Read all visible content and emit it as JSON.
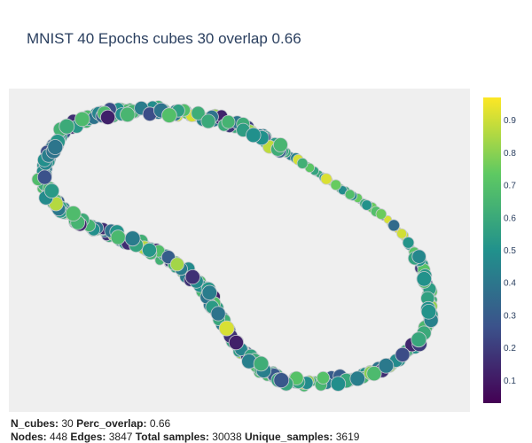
{
  "title": "MNIST 40 Epochs cubes 30 overlap 0.66",
  "chart_data": {
    "type": "scatter",
    "subtype": "mapper-graph",
    "title": "MNIST 40 Epochs cubes 30 overlap 0.66",
    "grid": false,
    "colorscale": "Viridis",
    "colorscale_stops": [
      "#440154",
      "#3b528b",
      "#21918c",
      "#5ec962",
      "#fde725"
    ],
    "colorbar": {
      "range": [
        0.03,
        0.97
      ],
      "ticks": [
        0.1,
        0.2,
        0.3,
        0.4,
        0.5,
        0.6,
        0.7,
        0.8,
        0.9
      ],
      "tick_labels": [
        "0.1",
        "0.2",
        "0.3",
        "0.4",
        "0.5",
        "0.6",
        "0.7",
        "0.8",
        "0.9"
      ],
      "placement": "right"
    },
    "node_color": "#9aa0a6",
    "edge_color": "#999999"
  },
  "footer": {
    "line1": [
      {
        "label": "N_cubes:",
        "value": "30"
      },
      {
        "label": "Perc_overlap:",
        "value": "0.66"
      }
    ],
    "line2": [
      {
        "label": "Nodes:",
        "value": "448"
      },
      {
        "label": "Edges:",
        "value": "3847"
      },
      {
        "label": "Total samples:",
        "value": "30038"
      },
      {
        "label": "Unique_samples:",
        "value": "3619"
      }
    ]
  }
}
